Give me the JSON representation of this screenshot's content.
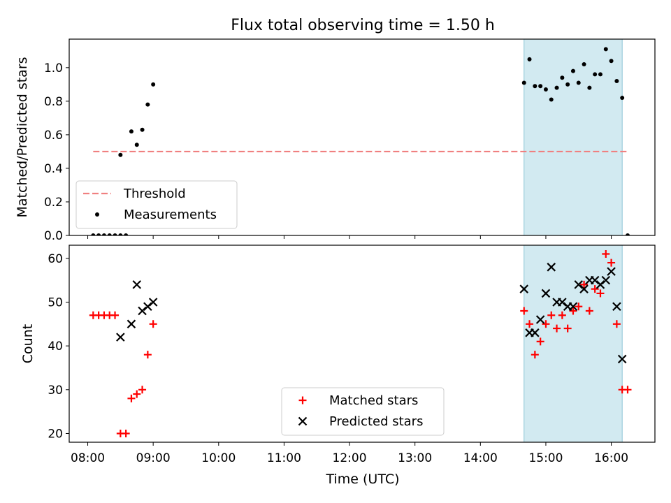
{
  "chart_data": {
    "title": "Flux total observing time = 1.50 h",
    "xlabel": "Time (UTC)",
    "x_unit": "hours UTC",
    "xlim": [
      "07:43",
      "16:40"
    ],
    "x_ticks": [
      "08:00",
      "09:00",
      "10:00",
      "11:00",
      "12:00",
      "13:00",
      "14:00",
      "15:00",
      "16:00"
    ],
    "highlight_span": {
      "x_start": "14:40",
      "x_end": "16:10",
      "color": "#add8e6"
    },
    "panels": [
      {
        "type": "scatter",
        "ylabel": "Matched/Predicted stars",
        "ylim": [
          0,
          1.17
        ],
        "y_ticks": [
          "0.0",
          "0.2",
          "0.4",
          "0.6",
          "0.8",
          "1.0"
        ],
        "legend_position": "lower-left",
        "threshold": {
          "name": "Threshold",
          "value": 0.5,
          "x_range": [
            "08:05",
            "16:15"
          ],
          "color": "#f08080"
        },
        "series": [
          {
            "name": "Measurements",
            "color": "#000000",
            "x": [
              "08:05",
              "08:10",
              "08:15",
              "08:20",
              "08:25",
              "08:30",
              "08:30",
              "08:35",
              "08:40",
              "08:45",
              "08:50",
              "08:55",
              "09:00",
              "14:40",
              "14:45",
              "14:50",
              "14:55",
              "15:00",
              "15:05",
              "15:10",
              "15:15",
              "15:20",
              "15:25",
              "15:30",
              "15:35",
              "15:40",
              "15:45",
              "15:50",
              "15:55",
              "16:00",
              "16:05",
              "16:10",
              "16:15"
            ],
            "y": [
              0,
              0,
              0,
              0,
              0,
              0,
              0.48,
              0,
              0.62,
              0.54,
              0.63,
              0.78,
              0.9,
              0.91,
              1.05,
              0.89,
              0.89,
              0.87,
              0.81,
              0.88,
              0.94,
              0.9,
              0.98,
              0.91,
              1.02,
              0.88,
              0.96,
              0.96,
              1.11,
              1.04,
              0.92,
              0.82,
              0
            ]
          }
        ]
      },
      {
        "type": "scatter",
        "ylabel": "Count",
        "ylim": [
          18,
          63
        ],
        "y_ticks": [
          "20",
          "30",
          "40",
          "50",
          "60"
        ],
        "legend_position": "lower-center",
        "series": [
          {
            "name": "Matched stars",
            "color": "#ff0000",
            "marker": "+",
            "x": [
              "08:05",
              "08:10",
              "08:15",
              "08:20",
              "08:25",
              "08:30",
              "08:35",
              "08:40",
              "08:45",
              "08:50",
              "08:55",
              "09:00",
              "14:40",
              "14:45",
              "14:50",
              "14:55",
              "15:00",
              "15:05",
              "15:10",
              "15:15",
              "15:20",
              "15:25",
              "15:30",
              "15:35",
              "15:40",
              "15:45",
              "15:50",
              "15:55",
              "16:00",
              "16:05",
              "16:10",
              "16:15"
            ],
            "y": [
              47,
              47,
              47,
              47,
              47,
              20,
              20,
              28,
              29,
              30,
              38,
              45,
              48,
              45,
              38,
              41,
              45,
              47,
              44,
              47,
              44,
              48,
              49,
              54,
              48,
              53,
              52,
              61,
              59,
              45,
              30,
              30
            ]
          },
          {
            "name": "Predicted stars",
            "color": "#000000",
            "marker": "x",
            "x": [
              "08:30",
              "08:40",
              "08:45",
              "08:50",
              "08:55",
              "09:00",
              "14:40",
              "14:45",
              "14:50",
              "14:55",
              "15:00",
              "15:05",
              "15:10",
              "15:15",
              "15:20",
              "15:25",
              "15:30",
              "15:35",
              "15:40",
              "15:45",
              "15:50",
              "15:55",
              "16:00",
              "16:05",
              "16:10"
            ],
            "y": [
              42,
              45,
              54,
              48,
              49,
              50,
              53,
              43,
              43,
              46,
              52,
              58,
              50,
              50,
              49,
              49,
              54,
              53,
              55,
              55,
              54,
              55,
              57,
              49,
              37
            ]
          }
        ]
      }
    ]
  }
}
